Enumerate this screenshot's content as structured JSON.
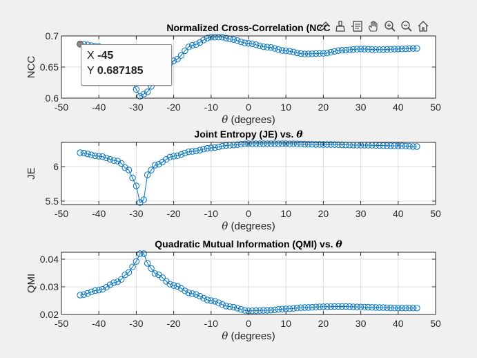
{
  "toolbar": {
    "icons": [
      "pen-icon",
      "brush-icon",
      "datatip-icon",
      "pan-icon",
      "zoom-in-icon",
      "zoom-out-icon",
      "home-icon"
    ]
  },
  "datatip": {
    "x_label": "X",
    "x_value": "-45",
    "y_label": "Y",
    "y_value": "0.687185"
  },
  "colors": {
    "marker": "#0072bd",
    "axis": "#262626",
    "grid": "#dcdcdc",
    "figure_bg": "#f0f0f0"
  },
  "chart_data": [
    {
      "type": "line",
      "title": "Normalized Cross-Correlation (NCC",
      "xlabel": "θ (degrees)",
      "ylabel": "NCC",
      "xlim": [
        -50,
        50
      ],
      "ylim": [
        0.6,
        0.7
      ],
      "xticks": [
        -50,
        -40,
        -30,
        -20,
        -10,
        0,
        10,
        20,
        30,
        40,
        50
      ],
      "yticks": [
        0.6,
        0.65,
        0.7
      ],
      "ytick_labels": [
        "0.6",
        "0.65",
        "0.7"
      ],
      "grid": true,
      "marker": "circle",
      "anchors": [
        [
          -45,
          0.687
        ],
        [
          -40,
          0.683
        ],
        [
          -35,
          0.665
        ],
        [
          -31,
          0.625
        ],
        [
          -29,
          0.603
        ],
        [
          -27,
          0.61
        ],
        [
          -25,
          0.628
        ],
        [
          -20,
          0.66
        ],
        [
          -15,
          0.685
        ],
        [
          -10,
          0.698
        ],
        [
          -7,
          0.698
        ],
        [
          -5,
          0.695
        ],
        [
          0,
          0.688
        ],
        [
          5,
          0.682
        ],
        [
          10,
          0.676
        ],
        [
          15,
          0.671
        ],
        [
          20,
          0.672
        ],
        [
          25,
          0.677
        ],
        [
          30,
          0.679
        ],
        [
          35,
          0.678
        ],
        [
          40,
          0.679
        ],
        [
          45,
          0.68
        ]
      ]
    },
    {
      "type": "line",
      "title": "Joint Entropy (JE) vs. θ",
      "xlabel": "θ (degrees)",
      "ylabel": "JE",
      "xlim": [
        -50,
        50
      ],
      "ylim": [
        5.45,
        6.35
      ],
      "xticks": [
        -50,
        -40,
        -30,
        -20,
        -10,
        0,
        10,
        20,
        30,
        40,
        50
      ],
      "yticks": [
        5.5,
        6
      ],
      "ytick_labels": [
        "5.5",
        "6"
      ],
      "grid": true,
      "marker": "circle",
      "anchors": [
        [
          -45,
          6.2
        ],
        [
          -40,
          6.15
        ],
        [
          -35,
          6.08
        ],
        [
          -32,
          5.95
        ],
        [
          -30,
          5.72
        ],
        [
          -29,
          5.48
        ],
        [
          -28,
          5.52
        ],
        [
          -27,
          5.88
        ],
        [
          -25,
          6.02
        ],
        [
          -20,
          6.15
        ],
        [
          -15,
          6.22
        ],
        [
          -10,
          6.27
        ],
        [
          -5,
          6.31
        ],
        [
          0,
          6.33
        ],
        [
          5,
          6.33
        ],
        [
          10,
          6.33
        ],
        [
          20,
          6.32
        ],
        [
          30,
          6.31
        ],
        [
          40,
          6.3
        ],
        [
          45,
          6.29
        ]
      ]
    },
    {
      "type": "line",
      "title": "Quadratic Mutual Information (QMI) vs. θ",
      "xlabel": "θ (degrees)",
      "ylabel": "QMI",
      "xlim": [
        -50,
        50
      ],
      "ylim": [
        0.02,
        0.0425
      ],
      "xticks": [
        -50,
        -40,
        -30,
        -20,
        -10,
        0,
        10,
        20,
        30,
        40,
        50
      ],
      "yticks": [
        0.02,
        0.03,
        0.04
      ],
      "ytick_labels": [
        "0.02",
        "0.03",
        "0.04"
      ],
      "grid": true,
      "marker": "circle",
      "anchors": [
        [
          -45,
          0.027
        ],
        [
          -40,
          0.0288
        ],
        [
          -35,
          0.0318
        ],
        [
          -32,
          0.0352
        ],
        [
          -30,
          0.0392
        ],
        [
          -29,
          0.042
        ],
        [
          -28,
          0.042
        ],
        [
          -27,
          0.0385
        ],
        [
          -25,
          0.0348
        ],
        [
          -20,
          0.0305
        ],
        [
          -15,
          0.0275
        ],
        [
          -10,
          0.025
        ],
        [
          -5,
          0.0228
        ],
        [
          0,
          0.0213
        ],
        [
          5,
          0.0215
        ],
        [
          10,
          0.022
        ],
        [
          15,
          0.0225
        ],
        [
          20,
          0.0228
        ],
        [
          25,
          0.0229
        ],
        [
          30,
          0.0227
        ],
        [
          35,
          0.0225
        ],
        [
          40,
          0.0223
        ],
        [
          45,
          0.0223
        ]
      ]
    }
  ]
}
